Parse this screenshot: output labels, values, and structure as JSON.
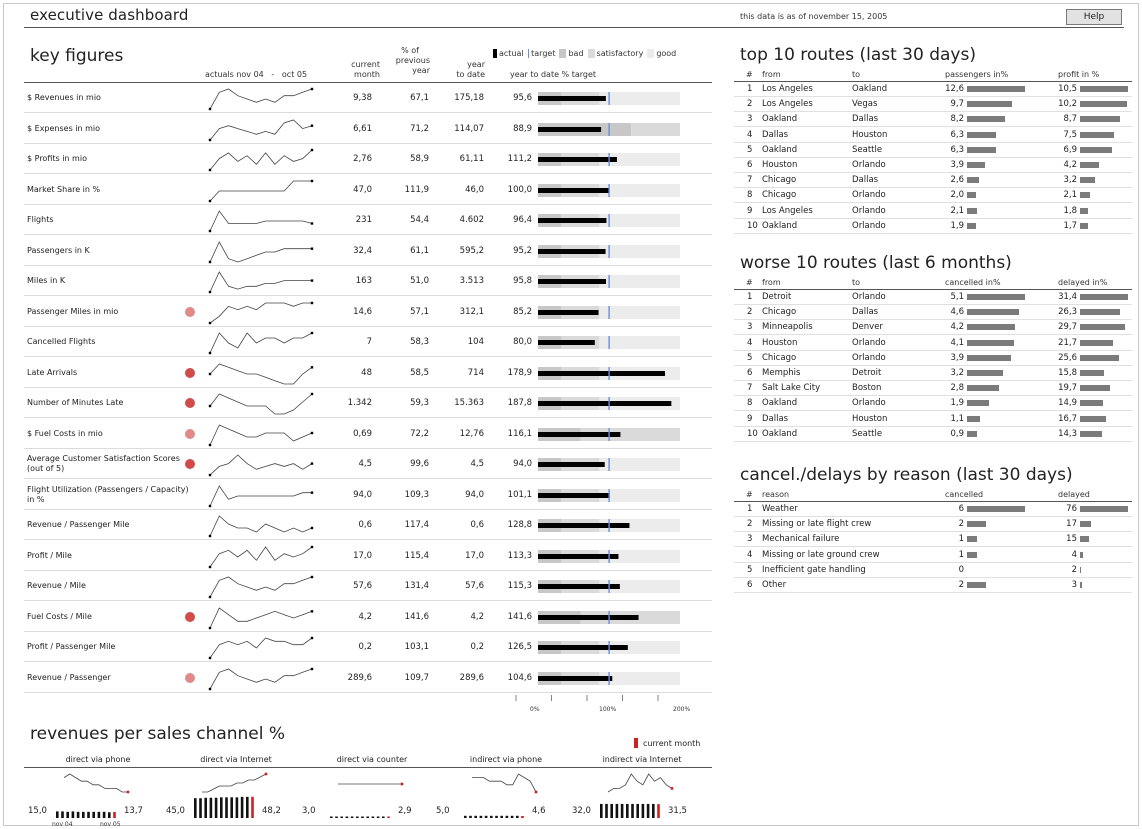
{
  "header": {
    "title": "executive dashboard",
    "as_of": "this data is as of november 15, 2005",
    "help_label": "Help"
  },
  "colors": {
    "actual": "#000000",
    "target": "#6b8fd8",
    "bad": "#c7c7c7",
    "satisfactory": "#dadada",
    "good": "#ececec",
    "alert_strong": "#d24b4b",
    "alert_light": "#e08a8a",
    "table_bar": "#7b7b7b",
    "current_month": "#d02020"
  },
  "key_figures": {
    "title": "key figures",
    "spark_header": "actuals nov 04   -   oct 05",
    "col_current": [
      "current",
      "month"
    ],
    "col_prev": [
      "% of",
      "previous",
      "year"
    ],
    "col_ytd": [
      "year",
      "to date"
    ],
    "col_target": "year to date % target",
    "legend": {
      "actual": "actual",
      "target": "target",
      "bad": "bad",
      "satisfactory": "satisfactory",
      "good": "good"
    },
    "axis_labels": [
      "0%",
      "100%",
      "200%"
    ],
    "rows": [
      {
        "label": "$ Revenues in mio",
        "alert": "",
        "current": "9,38",
        "prev": "67,1",
        "ytd": "175,18",
        "target_pct": "95,6",
        "pct": 95.6,
        "bad": 0.6,
        "sat": 1.0,
        "good": 2.1,
        "spark": [
          2,
          7,
          8,
          6,
          5,
          4,
          5,
          4,
          6,
          6,
          7,
          8
        ]
      },
      {
        "label": "$ Expenses in mio",
        "alert": "",
        "current": "6,61",
        "prev": "71,2",
        "ytd": "114,07",
        "target_pct": "88,9",
        "pct": 88.9,
        "bad": 2.1,
        "sat": 1.1,
        "good": 0.0,
        "spark": [
          2,
          6,
          7,
          6,
          5,
          4,
          5,
          4,
          8,
          9,
          6,
          7
        ]
      },
      {
        "label": "$ Profits in mio",
        "alert": "",
        "current": "2,76",
        "prev": "58,9",
        "ytd": "61,11",
        "target_pct": "111,2",
        "pct": 111.2,
        "bad": 0.6,
        "sat": 1.0,
        "good": 2.1,
        "spark": [
          2,
          6,
          8,
          5,
          7,
          4,
          8,
          4,
          7,
          5,
          6,
          9
        ]
      },
      {
        "label": "Market Share in %",
        "alert": "",
        "current": "47,0",
        "prev": "111,9",
        "ytd": "46,0",
        "target_pct": "100,0",
        "pct": 100.0,
        "bad": 0.6,
        "sat": 1.0,
        "good": 2.1,
        "spark": [
          1,
          5,
          5,
          5,
          5,
          5,
          5,
          5,
          5,
          9,
          9,
          9
        ]
      },
      {
        "label": "Flights",
        "alert": "",
        "current": "231",
        "prev": "54,4",
        "ytd": "4.602",
        "target_pct": "96,4",
        "pct": 96.4,
        "bad": 0.6,
        "sat": 1.0,
        "good": 2.1,
        "spark": [
          1,
          9,
          4,
          4,
          4,
          4,
          5,
          5,
          5,
          5,
          5,
          4
        ]
      },
      {
        "label": "Passengers in K",
        "alert": "",
        "current": "32,4",
        "prev": "61,1",
        "ytd": "595,2",
        "target_pct": "95,2",
        "pct": 95.2,
        "bad": 0.6,
        "sat": 1.0,
        "good": 2.1,
        "spark": [
          2,
          8,
          3,
          2,
          3,
          4,
          5,
          5,
          6,
          6,
          6,
          6
        ]
      },
      {
        "label": "Miles in K",
        "alert": "",
        "current": "163",
        "prev": "51,0",
        "ytd": "3.513",
        "target_pct": "95,8",
        "pct": 95.8,
        "bad": 0.6,
        "sat": 1.0,
        "good": 2.1,
        "spark": [
          2,
          9,
          4,
          3,
          4,
          4,
          5,
          5,
          6,
          6,
          6,
          6
        ]
      },
      {
        "label": "Passenger Miles in mio",
        "alert": "light",
        "current": "14,6",
        "prev": "57,1",
        "ytd": "312,1",
        "target_pct": "85,2",
        "pct": 85.2,
        "bad": 0.6,
        "sat": 1.0,
        "good": 2.1,
        "spark": [
          2,
          4,
          7,
          6,
          7,
          6,
          8,
          8,
          8,
          7,
          8,
          8
        ]
      },
      {
        "label": "Cancelled Flights",
        "alert": "",
        "current": "7",
        "prev": "58,3",
        "ytd": "104",
        "target_pct": "80,0",
        "pct": 80.0,
        "bad": 0.6,
        "sat": 1.0,
        "good": 2.1,
        "spark": [
          4,
          8,
          6,
          5,
          8,
          6,
          7,
          7,
          6,
          7,
          7,
          8
        ]
      },
      {
        "label": "Late Arrivals",
        "alert": "strong",
        "current": "48",
        "prev": "58,5",
        "ytd": "714",
        "target_pct": "178,9",
        "pct": 178.9,
        "bad": 0.6,
        "sat": 1.0,
        "good": 2.1,
        "spark": [
          6,
          9,
          8,
          7,
          6,
          6,
          5,
          4,
          3,
          3,
          6,
          8
        ]
      },
      {
        "label": "Number of Minutes Late",
        "alert": "strong",
        "current": "1.342",
        "prev": "59,3",
        "ytd": "15.363",
        "target_pct": "187,8",
        "pct": 187.8,
        "bad": 0.6,
        "sat": 1.0,
        "good": 2.1,
        "spark": [
          5,
          8,
          7,
          6,
          5,
          5,
          5,
          3,
          3,
          4,
          6,
          8
        ]
      },
      {
        "label": "$ Fuel Costs in mio",
        "alert": "light",
        "current": "0,69",
        "prev": "72,2",
        "ytd": "12,76",
        "target_pct": "116,1",
        "pct": 116.1,
        "bad": 0.6,
        "sat": 1.4,
        "good": 0.0,
        "spark": [
          3,
          8,
          7,
          6,
          5,
          5,
          6,
          6,
          6,
          4,
          5,
          6
        ]
      },
      {
        "label": "Average Customer Satisfaction Scores (out of 5)",
        "alert": "strong",
        "current": "4,5",
        "prev": "99,6",
        "ytd": "4,5",
        "target_pct": "94,0",
        "pct": 94.0,
        "bad": 0.6,
        "sat": 1.0,
        "good": 2.1,
        "spark": [
          2,
          5,
          6,
          9,
          6,
          4,
          5,
          6,
          5,
          6,
          4,
          6
        ]
      },
      {
        "label": "Flight Utilization (Passengers / Capacity) in %",
        "alert": "",
        "current": "94,0",
        "prev": "109,3",
        "ytd": "94,0",
        "target_pct": "101,1",
        "pct": 101.1,
        "bad": 0.6,
        "sat": 1.0,
        "good": 2.1,
        "spark": [
          2,
          8,
          4,
          5,
          5,
          5,
          5,
          5,
          5,
          5,
          6,
          6
        ]
      },
      {
        "label": "Revenue / Passenger Mile",
        "alert": "",
        "current": "0,6",
        "prev": "117,4",
        "ytd": "0,6",
        "target_pct": "128,8",
        "pct": 128.8,
        "bad": 0.6,
        "sat": 1.0,
        "good": 2.1,
        "spark": [
          3,
          8,
          6,
          5,
          5,
          4,
          6,
          5,
          4,
          5,
          4,
          5
        ]
      },
      {
        "label": "Profit / Mile",
        "alert": "",
        "current": "17,0",
        "prev": "115,4",
        "ytd": "17,0",
        "target_pct": "113,3",
        "pct": 113.3,
        "bad": 0.6,
        "sat": 1.0,
        "good": 2.1,
        "spark": [
          2,
          6,
          7,
          5,
          7,
          4,
          8,
          4,
          6,
          5,
          6,
          8
        ]
      },
      {
        "label": "Revenue / Mile",
        "alert": "",
        "current": "57,6",
        "prev": "131,4",
        "ytd": "57,6",
        "target_pct": "115,3",
        "pct": 115.3,
        "bad": 0.6,
        "sat": 1.0,
        "good": 2.1,
        "spark": [
          2,
          7,
          8,
          6,
          5,
          4,
          5,
          4,
          6,
          6,
          7,
          8
        ]
      },
      {
        "label": "Fuel Costs / Mile",
        "alert": "strong",
        "current": "4,2",
        "prev": "141,6",
        "ytd": "4,2",
        "target_pct": "141,6",
        "pct": 141.6,
        "bad": 0.6,
        "sat": 1.4,
        "good": 0.0,
        "spark": [
          2,
          8,
          6,
          4,
          4,
          5,
          6,
          7,
          6,
          5,
          6,
          7
        ]
      },
      {
        "label": "Profit / Passenger Mile",
        "alert": "",
        "current": "0,2",
        "prev": "103,1",
        "ytd": "0,2",
        "target_pct": "126,5",
        "pct": 126.5,
        "bad": 0.6,
        "sat": 1.0,
        "good": 2.1,
        "spark": [
          2,
          6,
          7,
          6,
          7,
          5,
          8,
          7,
          7,
          6,
          6,
          8
        ]
      },
      {
        "label": "Revenue / Passenger",
        "alert": "light",
        "current": "289,6",
        "prev": "109,7",
        "ytd": "289,6",
        "target_pct": "104,6",
        "pct": 104.6,
        "bad": 0.6,
        "sat": 1.0,
        "good": 2.1,
        "spark": [
          2,
          7,
          8,
          6,
          5,
          4,
          5,
          4,
          6,
          6,
          7,
          8
        ]
      }
    ]
  },
  "revenues_channel": {
    "title": "revenues per sales channel %",
    "legend_current": "current month",
    "tick_start": "nov 04",
    "tick_end": "nov 05",
    "channels": [
      {
        "name": "direct via phone",
        "start": "15,0",
        "end": "13,7",
        "spark": [
          6,
          7,
          6,
          5,
          5,
          4,
          4,
          3,
          3,
          3,
          2,
          2
        ],
        "bars": [
          15,
          15,
          14,
          15,
          14,
          14,
          14,
          14,
          14,
          14,
          13,
          13.7
        ]
      },
      {
        "name": "direct via Internet",
        "start": "45,0",
        "end": "48,2",
        "spark": [
          3,
          3,
          4,
          5,
          5,
          5,
          6,
          6,
          7,
          7,
          8,
          9
        ],
        "bars": [
          45,
          45,
          46,
          46,
          46,
          47,
          47,
          47,
          47,
          48,
          48,
          48.2
        ]
      },
      {
        "name": "direct via counter",
        "start": "3,0",
        "end": "2,9",
        "spark": [
          5,
          5,
          5,
          5,
          5,
          5,
          5,
          5,
          5,
          5,
          5,
          5
        ],
        "bars": [
          3,
          3,
          3,
          3,
          3,
          3,
          3,
          3,
          3,
          3,
          3,
          2.9
        ]
      },
      {
        "name": "indirect via phone",
        "start": "5,0",
        "end": "4,6",
        "spark": [
          7,
          7,
          7,
          6,
          6,
          6,
          5,
          5,
          8,
          7,
          6,
          3
        ],
        "bars": [
          5,
          5,
          5,
          5,
          5,
          5,
          5,
          5,
          5,
          5,
          5,
          4.6
        ]
      },
      {
        "name": "indirect via Internet",
        "start": "32,0",
        "end": "31,5",
        "spark": [
          3,
          4,
          4,
          5,
          8,
          6,
          5,
          8,
          6,
          7,
          5,
          4
        ],
        "bars": [
          32,
          32,
          32,
          32,
          32,
          32,
          32,
          32,
          32,
          32,
          32,
          31.5
        ]
      }
    ]
  },
  "top_routes": {
    "title": "top 10 routes (last 30 days)",
    "headers": [
      "#",
      "from",
      "to",
      "passengers in%",
      "profit in %"
    ],
    "rows": [
      {
        "n": "1",
        "from": "Los Angeles",
        "to": "Oakland",
        "a": "12,6",
        "av": 12.6,
        "b": "10,5",
        "bv": 10.5
      },
      {
        "n": "2",
        "from": "Los Angeles",
        "to": "Vegas",
        "a": "9,7",
        "av": 9.7,
        "b": "10,2",
        "bv": 10.2
      },
      {
        "n": "3",
        "from": "Oakland",
        "to": "Dallas",
        "a": "8,2",
        "av": 8.2,
        "b": "8,7",
        "bv": 8.7
      },
      {
        "n": "4",
        "from": "Dallas",
        "to": "Houston",
        "a": "6,3",
        "av": 6.3,
        "b": "7,5",
        "bv": 7.5
      },
      {
        "n": "5",
        "from": "Oakland",
        "to": "Seattle",
        "a": "6,3",
        "av": 6.3,
        "b": "6,9",
        "bv": 6.9
      },
      {
        "n": "6",
        "from": "Houston",
        "to": "Orlando",
        "a": "3,9",
        "av": 3.9,
        "b": "4,2",
        "bv": 4.2
      },
      {
        "n": "7",
        "from": "Chicago",
        "to": "Dallas",
        "a": "2,6",
        "av": 2.6,
        "b": "3,2",
        "bv": 3.2
      },
      {
        "n": "8",
        "from": "Chicago",
        "to": "Orlando",
        "a": "2,0",
        "av": 2.0,
        "b": "2,1",
        "bv": 2.1
      },
      {
        "n": "9",
        "from": "Los Angeles",
        "to": "Orlando",
        "a": "2,1",
        "av": 2.1,
        "b": "1,8",
        "bv": 1.8
      },
      {
        "n": "10",
        "from": "Oakland",
        "to": "Orlando",
        "a": "1,9",
        "av": 1.9,
        "b": "1,7",
        "bv": 1.7
      }
    ]
  },
  "worse_routes": {
    "title": "worse 10 routes (last 6 months)",
    "headers": [
      "#",
      "from",
      "to",
      "cancelled in%",
      "delayed in%"
    ],
    "rows": [
      {
        "n": "1",
        "from": "Detroit",
        "to": "Orlando",
        "a": "5,1",
        "av": 5.1,
        "b": "31,4",
        "bv": 31.4
      },
      {
        "n": "2",
        "from": "Chicago",
        "to": "Dallas",
        "a": "4,6",
        "av": 4.6,
        "b": "26,3",
        "bv": 26.3
      },
      {
        "n": "3",
        "from": "Minneapolis",
        "to": "Denver",
        "a": "4,2",
        "av": 4.2,
        "b": "29,7",
        "bv": 29.7
      },
      {
        "n": "4",
        "from": "Houston",
        "to": "Orlando",
        "a": "4,1",
        "av": 4.1,
        "b": "21,7",
        "bv": 21.7
      },
      {
        "n": "5",
        "from": "Chicago",
        "to": "Orlando",
        "a": "3,9",
        "av": 3.9,
        "b": "25,6",
        "bv": 25.6
      },
      {
        "n": "6",
        "from": "Memphis",
        "to": "Detroit",
        "a": "3,2",
        "av": 3.2,
        "b": "15,8",
        "bv": 15.8
      },
      {
        "n": "7",
        "from": "Salt Lake City",
        "to": "Boston",
        "a": "2,8",
        "av": 2.8,
        "b": "19,7",
        "bv": 19.7
      },
      {
        "n": "8",
        "from": "Oakland",
        "to": "Orlando",
        "a": "1,9",
        "av": 1.9,
        "b": "14,9",
        "bv": 14.9
      },
      {
        "n": "9",
        "from": "Dallas",
        "to": "Houston",
        "a": "1,1",
        "av": 1.1,
        "b": "16,7",
        "bv": 16.7
      },
      {
        "n": "10",
        "from": "Oakland",
        "to": "Seattle",
        "a": "0,9",
        "av": 0.9,
        "b": "14,3",
        "bv": 14.3
      }
    ]
  },
  "cancel_reasons": {
    "title": "cancel./delays by reason (last 30 days)",
    "headers": [
      "#",
      "reason",
      "cancelled",
      "delayed"
    ],
    "rows": [
      {
        "n": "1",
        "reason": "Weather",
        "a": "6",
        "av": 6,
        "b": "76",
        "bv": 76
      },
      {
        "n": "2",
        "reason": "Missing or late flight crew",
        "a": "2",
        "av": 2,
        "b": "17",
        "bv": 17
      },
      {
        "n": "3",
        "reason": "Mechanical failure",
        "a": "1",
        "av": 1,
        "b": "15",
        "bv": 15
      },
      {
        "n": "4",
        "reason": "Missing or late ground crew",
        "a": "1",
        "av": 1,
        "b": "4",
        "bv": 4
      },
      {
        "n": "5",
        "reason": "Inefficient gate handling",
        "a": "0",
        "av": 0,
        "b": "2",
        "bv": 2
      },
      {
        "n": "6",
        "reason": "Other",
        "a": "2",
        "av": 2,
        "b": "3",
        "bv": 3
      }
    ]
  }
}
